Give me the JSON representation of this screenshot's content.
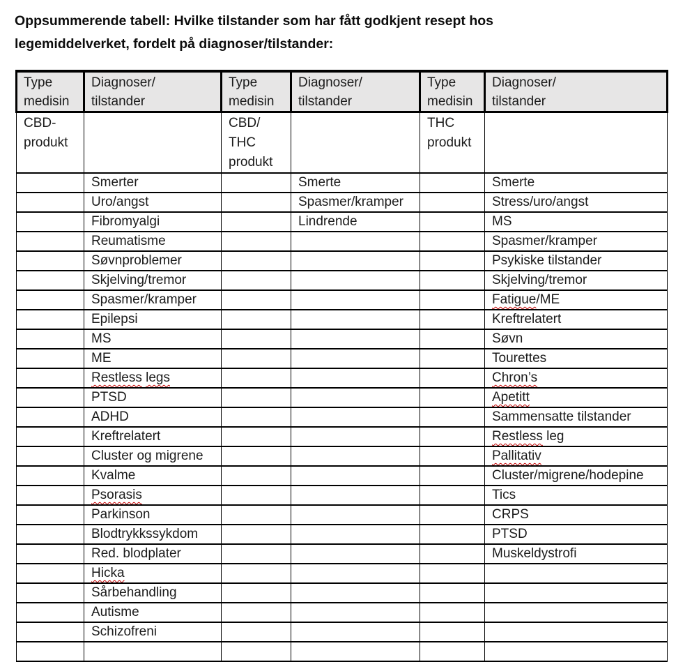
{
  "document": {
    "title": "Oppsummerende tabell: Hvilke tilstander som har fått godkjent resept hos legemiddelverket, fordelt på diagnoser/tilstander:"
  },
  "colors": {
    "page_bg": "#ffffff",
    "header_bg": "#e7e6e6",
    "border": "#000000",
    "text": "#1b1b1b",
    "spellcheck_red": "#c40000"
  },
  "table": {
    "column_headers": [
      "Type medisin",
      "Diagnoser/tilstander",
      "Type medisin",
      "Diagnoser/tilstander",
      "Type medisin",
      "Diagnoser/tilstander"
    ],
    "data_row_count": 25,
    "medicine_groups": [
      {
        "type_label": "CBD-produkt",
        "diagnoses": [
          "Smerter",
          "Uro/angst",
          "Fibromyalgi",
          "Reumatisme",
          "Søvnproblemer",
          "Skjelving/tremor",
          "Spasmer/kramper",
          "Epilepsi",
          "MS",
          "ME",
          [
            {
              "text": "Restless",
              "misspelled": true
            },
            {
              "text": " "
            },
            {
              "text": "legs",
              "misspelled": true
            }
          ],
          "PTSD",
          "ADHD",
          "Kreftrelatert",
          "Cluster og migrene",
          "Kvalme",
          [
            {
              "text": "Psorasis",
              "misspelled": true
            }
          ],
          "Parkinson",
          "Blodtrykkssykdom",
          "Red. blodplater",
          [
            {
              "text": "Hicka",
              "misspelled": true
            }
          ],
          "Sårbehandling",
          "Autisme",
          "Schizofreni"
        ]
      },
      {
        "type_label": "CBD/THC produkt",
        "diagnoses": [
          "Smerte",
          "Spasmer/kramper",
          "Lindrende"
        ]
      },
      {
        "type_label": "THC produkt",
        "diagnoses": [
          "Smerte",
          "Stress/uro/angst",
          "MS",
          "Spasmer/kramper",
          "Psykiske tilstander",
          "Skjelving/tremor",
          [
            {
              "text": "Fatigue",
              "misspelled": true
            },
            {
              "text": "/ME"
            }
          ],
          "Kreftrelatert",
          "Søvn",
          "Tourettes",
          [
            {
              "text": "Chron’s",
              "misspelled": true
            }
          ],
          [
            {
              "text": "Apetitt",
              "misspelled": true
            }
          ],
          "Sammensatte tilstander",
          [
            {
              "text": "Restless",
              "misspelled": true
            },
            {
              "text": " leg"
            }
          ],
          [
            {
              "text": "Pallitativ",
              "misspelled": true
            }
          ],
          "Cluster/migrene/hodepine",
          "Tics",
          "CRPS",
          "PTSD",
          "Muskeldystrofi"
        ]
      }
    ]
  }
}
